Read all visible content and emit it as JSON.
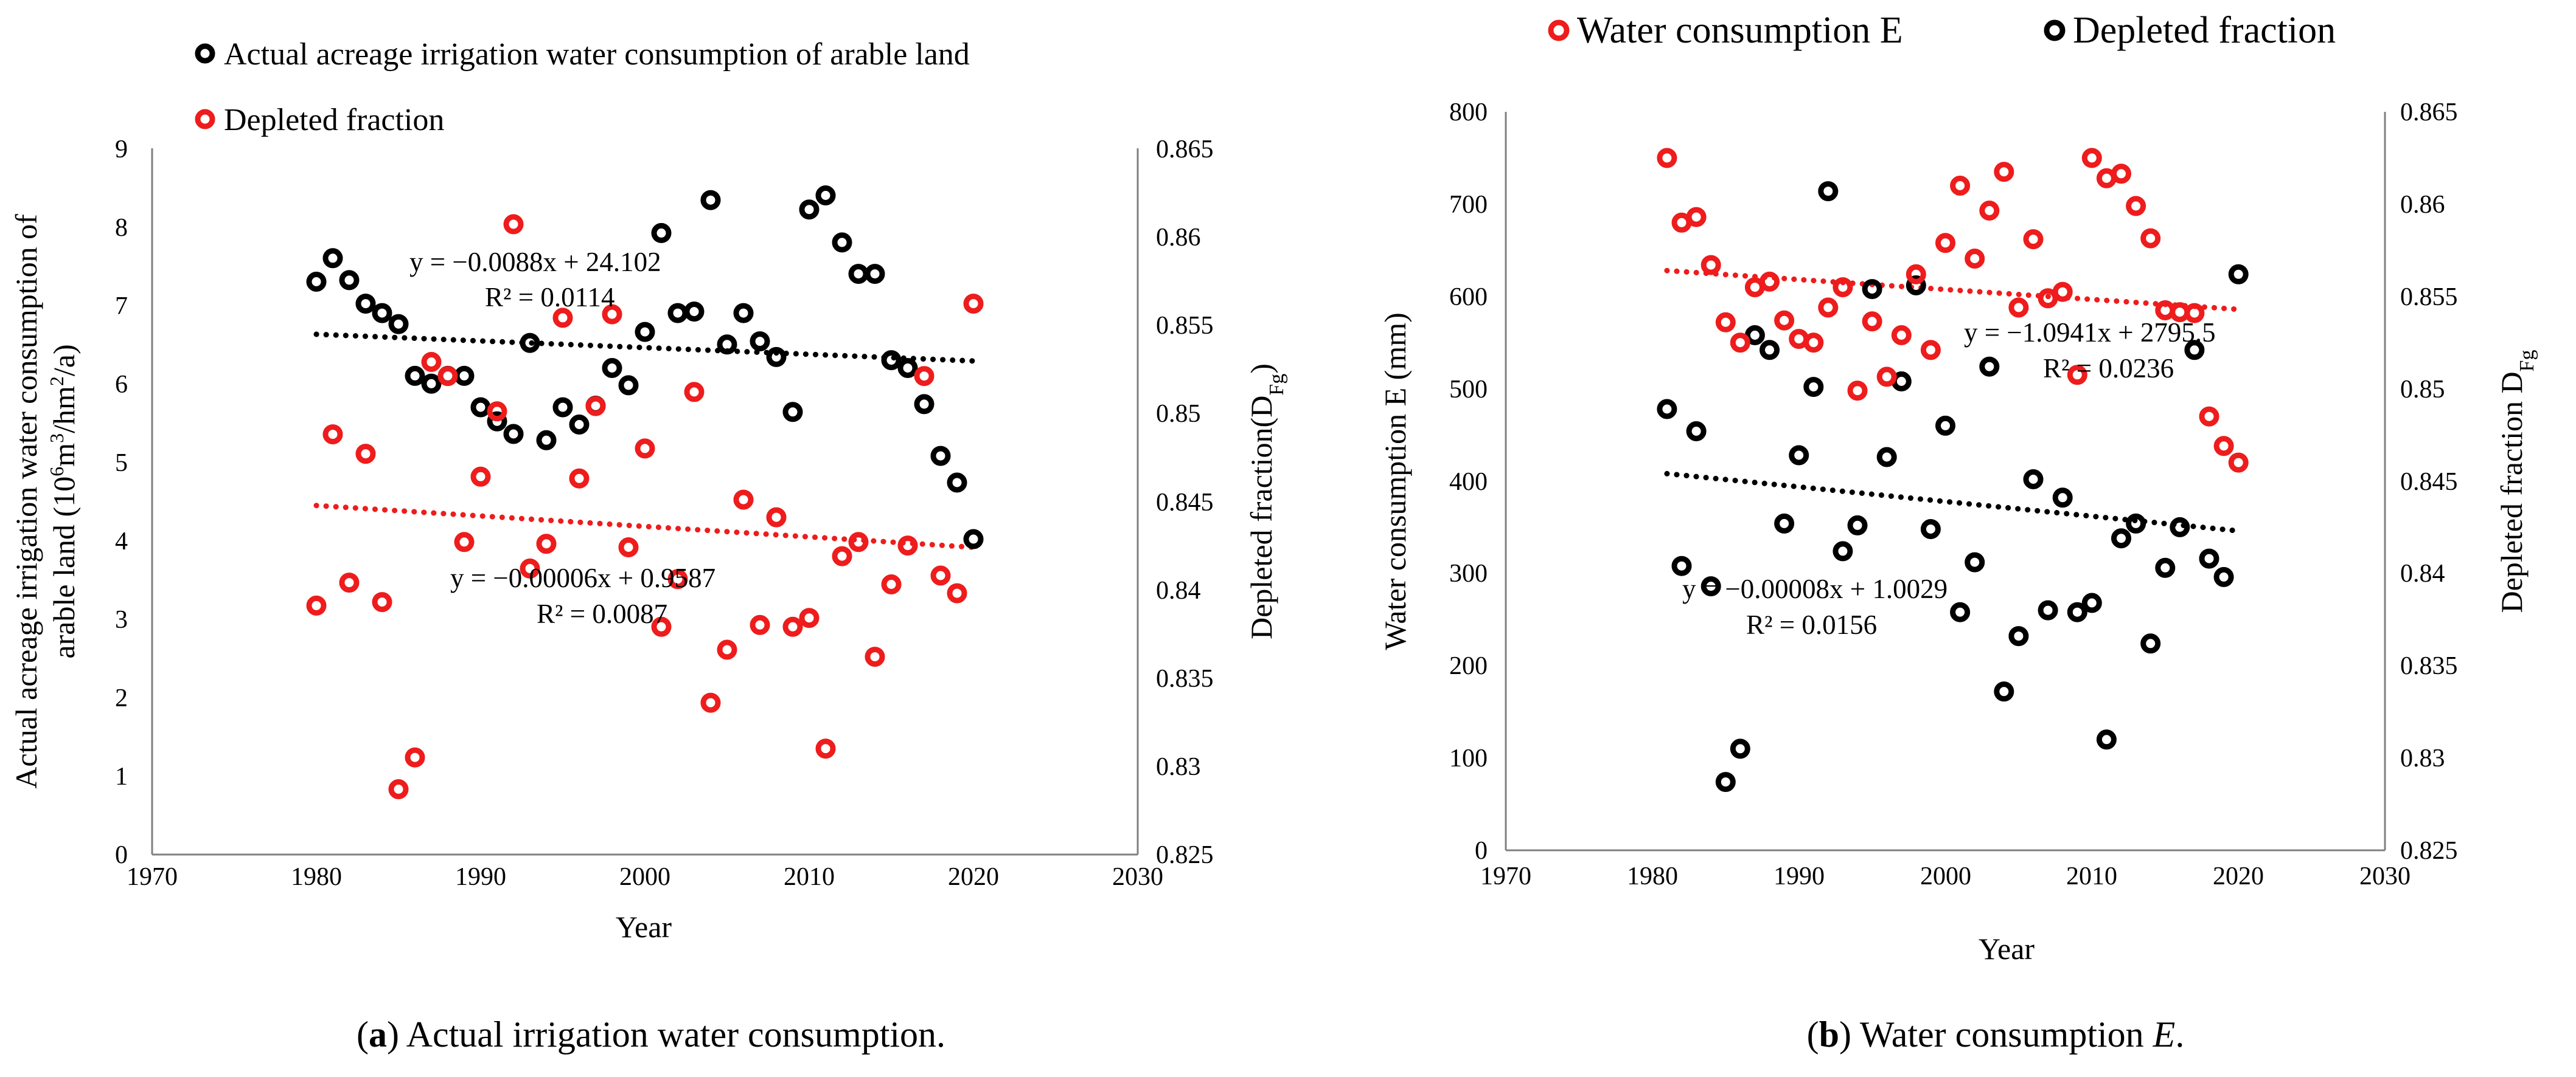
{
  "colors": {
    "red": "#ee1c1c",
    "black": "#000000",
    "axis": "#808080"
  },
  "captions": [
    {
      "open": "(",
      "letter": "a",
      "close": ") Actual irrigation water consumption.",
      "italic": "",
      "end": ""
    },
    {
      "open": "(",
      "letter": "b",
      "close": ") Water consumption ",
      "italic": "E",
      "end": "."
    }
  ],
  "chart_data": [
    {
      "type": "scatter",
      "panel": "a",
      "xlabel": "Year",
      "ylabel_line1": "Actual acreage irrigation water consumption of",
      "ylabel_line2": "arable land (10",
      "ylabel_sup1": "6",
      "ylabel_mid": "m",
      "ylabel_sup2": "3",
      "ylabel_mid2": "/hm",
      "ylabel_sup3": "2",
      "ylabel_end": "/a)",
      "y2label": "Depleted fraction(D",
      "y2label_sub": "Fg",
      "y2label_end": ")",
      "xlim": [
        1970,
        2030
      ],
      "xticks": [
        1970,
        1980,
        1990,
        2000,
        2010,
        2020,
        2030
      ],
      "ylim": [
        0,
        9
      ],
      "yticks": [
        0,
        1,
        2,
        3,
        4,
        5,
        6,
        7,
        8,
        9
      ],
      "y2lim": [
        0.825,
        0.865
      ],
      "y2ticks": [
        "0.825",
        "0.83",
        "0.835",
        "0.84",
        "0.845",
        "0.85",
        "0.855",
        "0.86",
        "0.865"
      ],
      "legend": [
        "Actual acreage irrigation water consumption of arable land",
        "Depleted fraction"
      ],
      "series": [
        {
          "name": "Actual acreage irrigation water consumption of arable land",
          "axis": "left",
          "color": "black",
          "x": [
            1980,
            1981,
            1982,
            1983,
            1984,
            1985,
            1986,
            1987,
            1988,
            1989,
            1990,
            1991,
            1992,
            1993,
            1994,
            1995,
            1996,
            1997,
            1998,
            1999,
            2000,
            2001,
            2002,
            2003,
            2004,
            2005,
            2006,
            2007,
            2008,
            2009,
            2010,
            2011,
            2012,
            2013,
            2014,
            2015,
            2016,
            2017,
            2018,
            2019,
            2020
          ],
          "y": [
            7.3,
            7.6,
            7.32,
            7.02,
            6.9,
            6.76,
            6.1,
            6.0,
            6.1,
            6.1,
            5.7,
            5.52,
            5.36,
            6.52,
            5.28,
            5.7,
            5.48,
            5.72,
            6.2,
            5.98,
            6.66,
            7.92,
            6.9,
            6.92,
            8.34,
            6.5,
            6.9,
            6.54,
            6.34,
            5.64,
            8.22,
            8.4,
            7.8,
            7.4,
            7.4,
            6.3,
            6.2,
            5.74,
            5.08,
            4.74,
            4.02
          ],
          "trend": {
            "x": [
              1980,
              2020
            ],
            "y": [
              6.63,
              6.29
            ],
            "equation": "y = −0.0088x + 24.102",
            "r2": "R² = 0.0114"
          }
        },
        {
          "name": "Depleted fraction",
          "axis": "right",
          "color": "red",
          "x": [
            1980,
            1981,
            1982,
            1983,
            1984,
            1985,
            1986,
            1987,
            1988,
            1989,
            1990,
            1991,
            1992,
            1993,
            1994,
            1995,
            1996,
            1997,
            1998,
            1999,
            2000,
            2001,
            2002,
            2003,
            2004,
            2005,
            2006,
            2007,
            2008,
            2009,
            2010,
            2011,
            2012,
            2013,
            2014,
            2015,
            2016,
            2017,
            2018,
            2019,
            2020
          ],
          "y": [
            0.8391,
            0.8488,
            0.8404,
            0.8477,
            0.8393,
            0.8287,
            0.8305,
            0.8529,
            0.8521,
            0.8427,
            0.8464,
            0.8501,
            0.8607,
            0.8412,
            0.8426,
            0.8554,
            0.8463,
            0.8504,
            0.8556,
            0.8424,
            0.848,
            0.8379,
            0.8406,
            0.8512,
            0.8336,
            0.8366,
            0.8451,
            0.838,
            0.8441,
            0.8379,
            0.8384,
            0.831,
            0.8419,
            0.8427,
            0.8362,
            0.8403,
            0.8425,
            0.8521,
            0.8408,
            0.8398,
            0.8562
          ],
          "trend": {
            "x": [
              1980,
              2020
            ],
            "y": [
              0.84477,
              0.8424
            ],
            "equation": "y = −0.00006x + 0.9587",
            "r2": "R² = 0.0087"
          }
        }
      ]
    },
    {
      "type": "scatter",
      "panel": "b",
      "xlabel": "Year",
      "ylabel": "Water consumption E (mm)",
      "y2label": "Depleted fraction D",
      "y2label_sub": "Fg",
      "xlim": [
        1970,
        2030
      ],
      "xticks": [
        1970,
        1980,
        1990,
        2000,
        2010,
        2020,
        2030
      ],
      "ylim": [
        0,
        800
      ],
      "yticks": [
        0,
        100,
        200,
        300,
        400,
        500,
        600,
        700,
        800
      ],
      "y2lim": [
        0.825,
        0.865
      ],
      "y2ticks": [
        "0.825",
        "0.83",
        "0.835",
        "0.84",
        "0.845",
        "0.85",
        "0.855",
        "0.86",
        "0.865"
      ],
      "legend": [
        "Water consumption E",
        "Depleted fraction"
      ],
      "series": [
        {
          "name": "Water consumption E",
          "axis": "left",
          "color": "red",
          "x": [
            1981,
            1982,
            1983,
            1984,
            1985,
            1986,
            1987,
            1988,
            1989,
            1990,
            1991,
            1992,
            1993,
            1994,
            1995,
            1996,
            1997,
            1998,
            1999,
            2000,
            2001,
            2002,
            2003,
            2004,
            2005,
            2006,
            2007,
            2008,
            2009,
            2010,
            2011,
            2012,
            2013,
            2014,
            2015,
            2016,
            2017,
            2018,
            2019,
            2020
          ],
          "y": [
            750,
            680,
            686,
            634,
            572,
            550,
            610,
            616,
            574,
            554,
            550,
            588,
            610,
            498,
            573,
            513,
            558,
            624,
            542,
            658,
            720,
            641,
            693,
            735,
            588,
            662,
            598,
            605,
            515,
            750,
            728,
            733,
            698,
            663,
            585,
            583,
            582,
            470,
            438,
            420
          ],
          "trend": {
            "x": [
              1981,
              2020
            ],
            "y": [
              628,
              586
            ],
            "equation": "y = −1.0941x + 2795.5",
            "r2": "R² = 0.0236"
          }
        },
        {
          "name": "Depleted fraction",
          "axis": "right",
          "color": "black",
          "x": [
            1981,
            1982,
            1983,
            1984,
            1985,
            1986,
            1987,
            1988,
            1989,
            1990,
            1991,
            1992,
            1993,
            1994,
            1995,
            1996,
            1997,
            1998,
            1999,
            2000,
            2001,
            2002,
            2003,
            2004,
            2005,
            2006,
            2007,
            2008,
            2009,
            2010,
            2011,
            2012,
            2013,
            2014,
            2015,
            2016,
            2017,
            2018,
            2019,
            2020
          ],
          "y": [
            0.8489,
            0.8404,
            0.8477,
            0.8393,
            0.8287,
            0.8305,
            0.8529,
            0.8521,
            0.8427,
            0.8464,
            0.8501,
            0.8607,
            0.8412,
            0.8426,
            0.8554,
            0.8463,
            0.8504,
            0.8556,
            0.8424,
            0.848,
            0.8379,
            0.8406,
            0.8512,
            0.8336,
            0.8366,
            0.8451,
            0.838,
            0.8441,
            0.8379,
            0.8384,
            0.831,
            0.8419,
            0.8427,
            0.8362,
            0.8403,
            0.8425,
            0.8521,
            0.8408,
            0.8398,
            0.8562
          ],
          "trend": {
            "x": [
              1981,
              2020
            ],
            "y": [
              0.8454,
              0.8423
            ],
            "equation": "y = −0.00008x + 1.0029",
            "r2": "R² = 0.0156"
          }
        }
      ]
    }
  ]
}
